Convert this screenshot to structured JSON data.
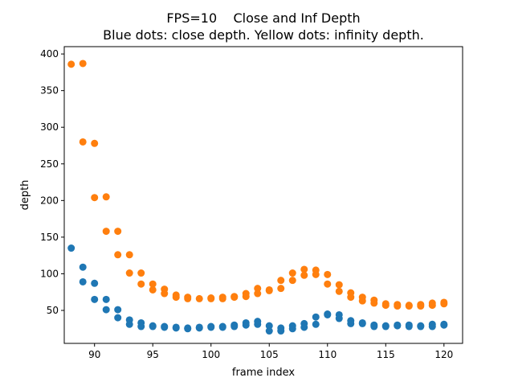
{
  "chart_data": {
    "type": "scatter",
    "title": "FPS=10    Close and Inf Depth",
    "subtitle": "Blue dots: close depth. Yellow dots: infinity depth.",
    "xlabel": "frame index",
    "ylabel": "depth",
    "xlim": [
      87.4,
      121.6
    ],
    "ylim": [
      5,
      410
    ],
    "xticks": [
      90,
      95,
      100,
      105,
      110,
      115,
      120
    ],
    "yticks": [
      50,
      100,
      150,
      200,
      250,
      300,
      350,
      400
    ],
    "grid": false,
    "series": [
      {
        "color": "#1f77b4",
        "points": [
          [
            88,
            135
          ],
          [
            89,
            109
          ],
          [
            89,
            89
          ],
          [
            90,
            87
          ],
          [
            90,
            65
          ],
          [
            91,
            65
          ],
          [
            91,
            51
          ],
          [
            92,
            51
          ],
          [
            92,
            40
          ],
          [
            93,
            37
          ],
          [
            93,
            31
          ],
          [
            94,
            33
          ],
          [
            94,
            28
          ],
          [
            95,
            29
          ],
          [
            95,
            28
          ],
          [
            96,
            28
          ],
          [
            96,
            27
          ],
          [
            97,
            27
          ],
          [
            97,
            26
          ],
          [
            98,
            26
          ],
          [
            98,
            25
          ],
          [
            99,
            27
          ],
          [
            99,
            26
          ],
          [
            100,
            28
          ],
          [
            100,
            27
          ],
          [
            101,
            28
          ],
          [
            101,
            27
          ],
          [
            102,
            30
          ],
          [
            102,
            28
          ],
          [
            103,
            33
          ],
          [
            103,
            30
          ],
          [
            104,
            35
          ],
          [
            104,
            31
          ],
          [
            105,
            29
          ],
          [
            105,
            22
          ],
          [
            106,
            26
          ],
          [
            106,
            22
          ],
          [
            107,
            29
          ],
          [
            107,
            25
          ],
          [
            108,
            32
          ],
          [
            108,
            27
          ],
          [
            109,
            41
          ],
          [
            109,
            31
          ],
          [
            110,
            45
          ],
          [
            110,
            44
          ],
          [
            111,
            44
          ],
          [
            111,
            39
          ],
          [
            112,
            36
          ],
          [
            112,
            32
          ],
          [
            113,
            33
          ],
          [
            113,
            32
          ],
          [
            114,
            30
          ],
          [
            114,
            28
          ],
          [
            115,
            29
          ],
          [
            115,
            28
          ],
          [
            116,
            30
          ],
          [
            116,
            29
          ],
          [
            117,
            30
          ],
          [
            117,
            28
          ],
          [
            118,
            29
          ],
          [
            118,
            28
          ],
          [
            119,
            31
          ],
          [
            119,
            28
          ],
          [
            120,
            31
          ],
          [
            120,
            30
          ]
        ]
      },
      {
        "color": "#ff7f0e",
        "points": [
          [
            88,
            386
          ],
          [
            89,
            387
          ],
          [
            89,
            280
          ],
          [
            90,
            278
          ],
          [
            90,
            204
          ],
          [
            91,
            205
          ],
          [
            91,
            158
          ],
          [
            92,
            158
          ],
          [
            92,
            126
          ],
          [
            93,
            126
          ],
          [
            93,
            101
          ],
          [
            94,
            101
          ],
          [
            94,
            86
          ],
          [
            95,
            86
          ],
          [
            95,
            78
          ],
          [
            96,
            79
          ],
          [
            96,
            73
          ],
          [
            97,
            71
          ],
          [
            97,
            68
          ],
          [
            98,
            68
          ],
          [
            98,
            66
          ],
          [
            99,
            66
          ],
          [
            100,
            67
          ],
          [
            100,
            66
          ],
          [
            101,
            68
          ],
          [
            101,
            66
          ],
          [
            102,
            69
          ],
          [
            102,
            68
          ],
          [
            103,
            73
          ],
          [
            103,
            69
          ],
          [
            104,
            80
          ],
          [
            104,
            73
          ],
          [
            105,
            78
          ],
          [
            105,
            77
          ],
          [
            106,
            91
          ],
          [
            106,
            80
          ],
          [
            107,
            101
          ],
          [
            107,
            91
          ],
          [
            108,
            106
          ],
          [
            108,
            98
          ],
          [
            109,
            105
          ],
          [
            109,
            99
          ],
          [
            110,
            99
          ],
          [
            110,
            86
          ],
          [
            111,
            85
          ],
          [
            111,
            76
          ],
          [
            112,
            74
          ],
          [
            112,
            68
          ],
          [
            113,
            68
          ],
          [
            113,
            63
          ],
          [
            114,
            64
          ],
          [
            114,
            60
          ],
          [
            115,
            59
          ],
          [
            115,
            57
          ],
          [
            116,
            58
          ],
          [
            116,
            56
          ],
          [
            117,
            57
          ],
          [
            117,
            56
          ],
          [
            118,
            58
          ],
          [
            118,
            56
          ],
          [
            119,
            60
          ],
          [
            119,
            57
          ],
          [
            120,
            61
          ],
          [
            120,
            59
          ]
        ]
      }
    ]
  }
}
